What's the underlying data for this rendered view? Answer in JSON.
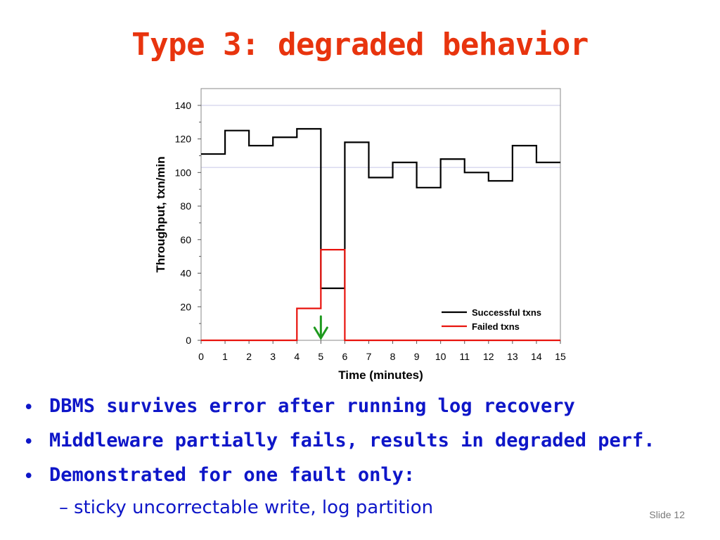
{
  "title": "Type 3: degraded behavior",
  "bullets": [
    "DBMS survives error after running log recovery",
    "Middleware partially fails, results in degraded perf.",
    "Demonstrated for one fault only:"
  ],
  "sub_bullet": "sticky uncorrectable write, log partition",
  "bullet_marker": "•",
  "sub_marker": "–",
  "slide_number": "Slide 12",
  "colors": {
    "title": "#e8340e",
    "bullets": "#0e16c8",
    "successful": "#000000",
    "failed": "#e8140e",
    "arrow": "#1e9a1e",
    "gridline": "#c8c8e6"
  },
  "chart_data": {
    "type": "line",
    "step": true,
    "xlabel": "Time (minutes)",
    "ylabel": "Throughput, txn/min",
    "xlim": [
      0,
      15
    ],
    "ylim": [
      0,
      150
    ],
    "xticks": [
      0,
      1,
      2,
      3,
      4,
      5,
      6,
      7,
      8,
      9,
      10,
      11,
      12,
      13,
      14,
      15
    ],
    "yticks": [
      0,
      20,
      40,
      60,
      80,
      100,
      120,
      140
    ],
    "gridlines_y": [
      140,
      103
    ],
    "legend_position": "bottom-right",
    "series": [
      {
        "name": "Successful txns",
        "color": "#000000",
        "points": [
          [
            0,
            111
          ],
          [
            1,
            125
          ],
          [
            2,
            116
          ],
          [
            3,
            121
          ],
          [
            4,
            126
          ],
          [
            5,
            31
          ],
          [
            6,
            118
          ],
          [
            7,
            97
          ],
          [
            8,
            106
          ],
          [
            9,
            91
          ],
          [
            10,
            108
          ],
          [
            11,
            100
          ],
          [
            12,
            95
          ],
          [
            13,
            116
          ],
          [
            14,
            106
          ],
          [
            15,
            106
          ]
        ]
      },
      {
        "name": "Failed txns",
        "color": "#e8140e",
        "points": [
          [
            0,
            0
          ],
          [
            4,
            19
          ],
          [
            5,
            54
          ],
          [
            6,
            0
          ],
          [
            15,
            0
          ]
        ]
      }
    ],
    "annotation": {
      "type": "arrow",
      "x": 5,
      "color": "#1e9a1e",
      "icon": "down-arrow-icon"
    }
  }
}
